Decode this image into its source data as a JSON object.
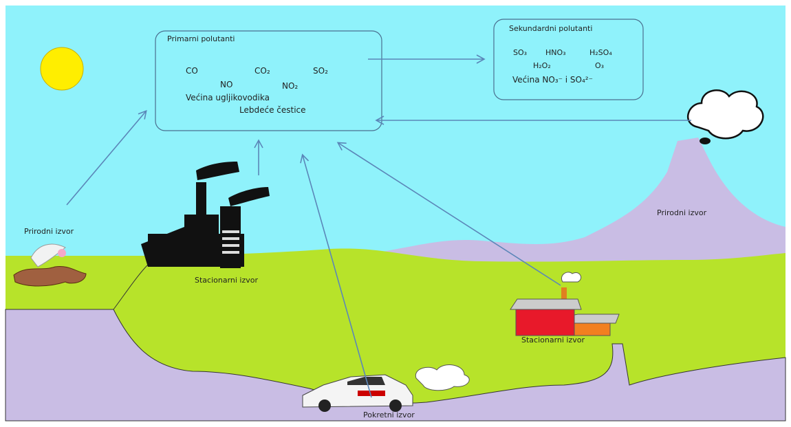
{
  "primary": {
    "title": "Primarni polutanti",
    "items": [
      "CO",
      "CO₂",
      "SO₂",
      "NO",
      "NO₂",
      "Većina ugljikovodika",
      "Lebdeće čestice"
    ]
  },
  "secondary": {
    "title": "Sekundardni polutanti",
    "items": [
      "SO₃",
      "HNO₃",
      "H₂SO₄",
      "H₂O₂",
      "O₃",
      "Većina NO₃⁻ i SO₄²⁻"
    ]
  },
  "sources": [
    "Prirodni izvor",
    "Stacionarni izvor",
    "Prirodni izvor",
    "Stacionarni izvor",
    "Pokretni izvor"
  ]
}
